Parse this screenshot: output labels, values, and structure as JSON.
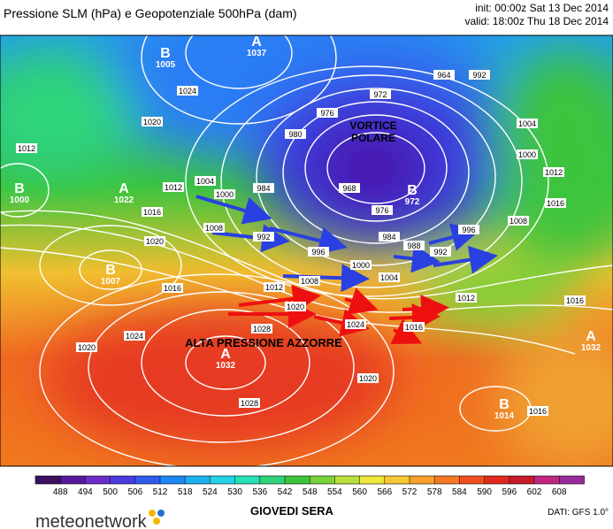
{
  "header": {
    "title": "Pressione SLM (hPa) e Geopotenziale 500hPa (dam)",
    "init": "init: 00:00z Sat 13 Dec 2014",
    "valid": "valid: 18:00z Thu 18 Dec 2014"
  },
  "annotations": {
    "vortex": [
      "VORTICE",
      "POLARE"
    ],
    "high": "ALTA PRESSIONE AZZORRE"
  },
  "centers": [
    {
      "letter": "B",
      "value": 1005
    },
    {
      "letter": "A",
      "value": 1037
    },
    {
      "letter": "B",
      "value": 1000
    },
    {
      "letter": "A",
      "value": 1022
    },
    {
      "letter": "B",
      "value": 1007
    },
    {
      "letter": "A",
      "value": 1032
    },
    {
      "letter": "B",
      "value": 972
    },
    {
      "letter": "A",
      "value": 1032
    },
    {
      "letter": "B",
      "value": 1014
    }
  ],
  "isobar_labels": [
    1024,
    1020,
    1012,
    1004,
    1000,
    984,
    980,
    976,
    972,
    964,
    992,
    1004,
    1000,
    1012,
    1016,
    1008,
    1016,
    1020,
    1012,
    1008,
    992,
    996,
    968,
    976,
    984,
    988,
    992,
    996,
    1000,
    1004,
    1008,
    1012,
    1016,
    1020,
    1024,
    1028,
    1016,
    1012,
    1016,
    1024,
    1020,
    1020,
    1028,
    1016
  ],
  "colorbar": {
    "ticks": [
      488,
      494,
      500,
      506,
      512,
      518,
      524,
      530,
      536,
      542,
      548,
      554,
      560,
      566,
      572,
      578,
      584,
      590,
      596,
      602,
      608
    ],
    "colors": [
      "#3c1060",
      "#5a189a",
      "#6a2dc8",
      "#4b3ce0",
      "#2f5bf0",
      "#1f86f5",
      "#1fb0f0",
      "#22d2e6",
      "#27e0b4",
      "#2fd47a",
      "#3cc43c",
      "#7ad23a",
      "#b8e03a",
      "#f0e83a",
      "#f8c832",
      "#f8a02a",
      "#f57a22",
      "#ee5020",
      "#e02a1e",
      "#c81a2a",
      "#c02880",
      "#9a2a9a"
    ]
  },
  "caption": "GIOVEDI SERA",
  "logo": "meteonetwork",
  "source": "DATI: GFS 1.0°"
}
